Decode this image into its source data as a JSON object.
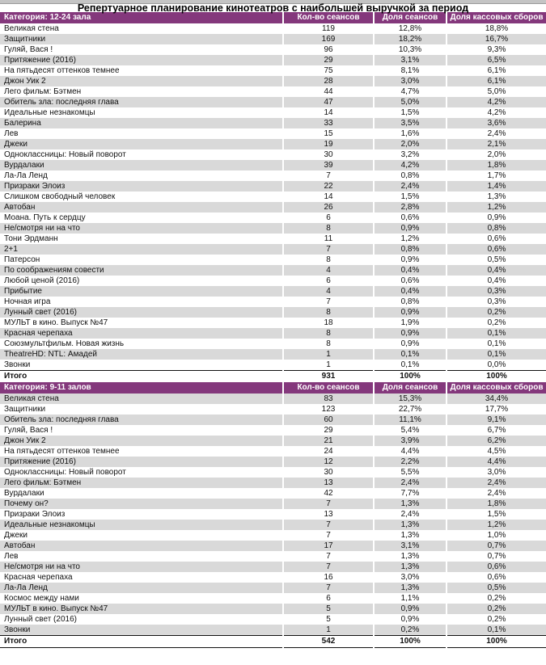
{
  "title": "Репертуарное планирование кинотеатров с наибольшей выручкой за период",
  "columns": [
    "Кол-во сеансов",
    "Доля сеансов",
    "Доля кассовых сборов"
  ],
  "colors": {
    "header_bg": "#84387c",
    "header_text": "#ffffff",
    "stripe": "#d9d9d9",
    "top_bar": "#c4c4c4"
  },
  "sections": [
    {
      "category": "Категория: 12-24 зала",
      "gray_rows": "even",
      "rows": [
        [
          "Великая стена",
          "119",
          "12,8%",
          "18,8%"
        ],
        [
          "Защитники",
          "169",
          "18,2%",
          "16,7%"
        ],
        [
          "Гуляй, Вася !",
          "96",
          "10,3%",
          "9,3%"
        ],
        [
          "Притяжение (2016)",
          "29",
          "3,1%",
          "6,5%"
        ],
        [
          "На пятьдесят оттенков темнее",
          "75",
          "8,1%",
          "6,1%"
        ],
        [
          "Джон Уик 2",
          "28",
          "3,0%",
          "6,1%"
        ],
        [
          "Лего фильм: Бэтмен",
          "44",
          "4,7%",
          "5,0%"
        ],
        [
          "Обитель зла: последняя глава",
          "47",
          "5,0%",
          "4,2%"
        ],
        [
          "Идеальные незнакомцы",
          "14",
          "1,5%",
          "4,2%"
        ],
        [
          "Балерина",
          "33",
          "3,5%",
          "3,6%"
        ],
        [
          "Лев",
          "15",
          "1,6%",
          "2,4%"
        ],
        [
          "Джеки",
          "19",
          "2,0%",
          "2,1%"
        ],
        [
          "Одноклассницы: Новый поворот",
          "30",
          "3,2%",
          "2,0%"
        ],
        [
          "Вурдалаки",
          "39",
          "4,2%",
          "1,8%"
        ],
        [
          "Ла-Ла Ленд",
          "7",
          "0,8%",
          "1,7%"
        ],
        [
          "Призраки Элоиз",
          "22",
          "2,4%",
          "1,4%"
        ],
        [
          "Слишком свободный человек",
          "14",
          "1,5%",
          "1,3%"
        ],
        [
          "Автобан",
          "26",
          "2,8%",
          "1,2%"
        ],
        [
          "Моана. Путь к сердцу",
          "6",
          "0,6%",
          "0,9%"
        ],
        [
          "Не/смотря ни на что",
          "8",
          "0,9%",
          "0,8%"
        ],
        [
          "Тони Эрдманн",
          "11",
          "1,2%",
          "0,6%"
        ],
        [
          "2+1",
          "7",
          "0,8%",
          "0,6%"
        ],
        [
          "Патерсон",
          "8",
          "0,9%",
          "0,5%"
        ],
        [
          "По соображениям совести",
          "4",
          "0,4%",
          "0,4%"
        ],
        [
          "Любой ценой (2016)",
          "6",
          "0,6%",
          "0,4%"
        ],
        [
          "Прибытие",
          "4",
          "0,4%",
          "0,3%"
        ],
        [
          "Ночная игра",
          "7",
          "0,8%",
          "0,3%"
        ],
        [
          "Лунный свет (2016)",
          "8",
          "0,9%",
          "0,2%"
        ],
        [
          "МУЛЬТ в кино. Выпуск №47",
          "18",
          "1,9%",
          "0,2%"
        ],
        [
          "Красная черепаха",
          "8",
          "0,9%",
          "0,1%"
        ],
        [
          "Союзмультфильм. Новая жизнь",
          "8",
          "0,9%",
          "0,1%"
        ],
        [
          "TheatreHD: NTL: Амадей",
          "1",
          "0,1%",
          "0,1%"
        ],
        [
          "Звонки",
          "1",
          "0,1%",
          "0,0%"
        ]
      ],
      "total": [
        "Итого",
        "931",
        "100%",
        "100%"
      ]
    },
    {
      "category": "Категория: 9-11 залов",
      "gray_rows": "odd",
      "rows": [
        [
          "Великая стена",
          "83",
          "15,3%",
          "34,4%"
        ],
        [
          "Защитники",
          "123",
          "22,7%",
          "17,7%"
        ],
        [
          "Обитель зла: последняя глава",
          "60",
          "11,1%",
          "9,1%"
        ],
        [
          "Гуляй, Вася !",
          "29",
          "5,4%",
          "6,7%"
        ],
        [
          "Джон Уик 2",
          "21",
          "3,9%",
          "6,2%"
        ],
        [
          "На пятьдесят оттенков темнее",
          "24",
          "4,4%",
          "4,5%"
        ],
        [
          "Притяжение (2016)",
          "12",
          "2,2%",
          "4,4%"
        ],
        [
          "Одноклассницы: Новый поворот",
          "30",
          "5,5%",
          "3,0%"
        ],
        [
          "Лего фильм: Бэтмен",
          "13",
          "2,4%",
          "2,4%"
        ],
        [
          "Вурдалаки",
          "42",
          "7,7%",
          "2,4%"
        ],
        [
          "Почему он?",
          "7",
          "1,3%",
          "1,8%"
        ],
        [
          "Призраки Элоиз",
          "13",
          "2,4%",
          "1,5%"
        ],
        [
          "Идеальные незнакомцы",
          "7",
          "1,3%",
          "1,2%"
        ],
        [
          "Джеки",
          "7",
          "1,3%",
          "1,0%"
        ],
        [
          "Автобан",
          "17",
          "3,1%",
          "0,7%"
        ],
        [
          "Лев",
          "7",
          "1,3%",
          "0,7%"
        ],
        [
          "Не/смотря ни на что",
          "7",
          "1,3%",
          "0,6%"
        ],
        [
          "Красная черепаха",
          "16",
          "3,0%",
          "0,6%"
        ],
        [
          "Ла-Ла Ленд",
          "7",
          "1,3%",
          "0,5%"
        ],
        [
          "Космос между нами",
          "6",
          "1,1%",
          "0,2%"
        ],
        [
          "МУЛЬТ в кино. Выпуск №47",
          "5",
          "0,9%",
          "0,2%"
        ],
        [
          "Лунный свет (2016)",
          "5",
          "0,9%",
          "0,2%"
        ],
        [
          "Звонки",
          "1",
          "0,2%",
          "0,1%"
        ]
      ],
      "total": [
        "Итого",
        "542",
        "100%",
        "100%"
      ]
    }
  ]
}
